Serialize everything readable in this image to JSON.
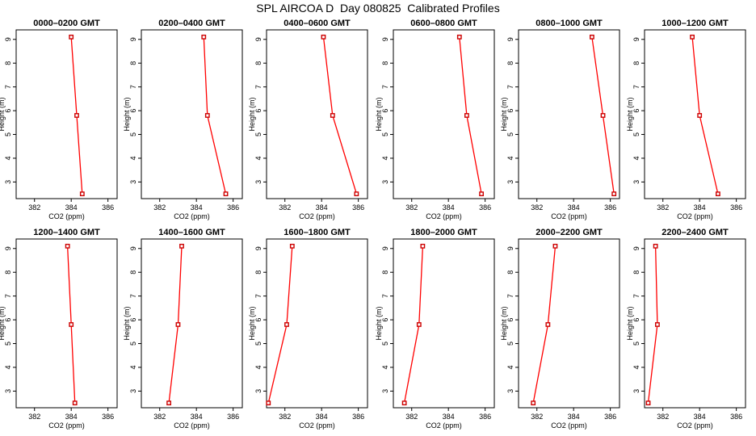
{
  "title": "SPL AIRCOA D  Day 080825  Calibrated Profiles",
  "style": {
    "line_color": "#ff0000",
    "marker_color": "#cc0000",
    "axis_color": "#000000"
  },
  "chart_data": [
    {
      "type": "line",
      "title": "0000–0200 GMT",
      "xlabel": "CO2 (ppm)",
      "ylabel": "Height (m)",
      "xlim": [
        381,
        386.5
      ],
      "ylim": [
        2.3,
        9.4
      ],
      "xticks": [
        382,
        384,
        386
      ],
      "yticks": [
        3,
        4,
        5,
        6,
        7,
        8,
        9
      ],
      "grid": false,
      "series": [
        {
          "x": [
            384.0,
            384.3,
            384.6
          ],
          "y": [
            9.1,
            5.8,
            2.5
          ]
        }
      ]
    },
    {
      "type": "line",
      "title": "0200–0400 GMT",
      "xlabel": "CO2 (ppm)",
      "ylabel": "Height (m)",
      "xlim": [
        381,
        386.5
      ],
      "ylim": [
        2.3,
        9.4
      ],
      "xticks": [
        382,
        384,
        386
      ],
      "yticks": [
        3,
        4,
        5,
        6,
        7,
        8,
        9
      ],
      "grid": false,
      "series": [
        {
          "x": [
            384.4,
            384.6,
            385.6
          ],
          "y": [
            9.1,
            5.8,
            2.5
          ]
        }
      ]
    },
    {
      "type": "line",
      "title": "0400–0600 GMT",
      "xlabel": "CO2 (ppm)",
      "ylabel": "Height (m)",
      "xlim": [
        381,
        386.5
      ],
      "ylim": [
        2.3,
        9.4
      ],
      "xticks": [
        382,
        384,
        386
      ],
      "yticks": [
        3,
        4,
        5,
        6,
        7,
        8,
        9
      ],
      "grid": false,
      "series": [
        {
          "x": [
            384.1,
            384.6,
            385.9
          ],
          "y": [
            9.1,
            5.8,
            2.5
          ]
        }
      ]
    },
    {
      "type": "line",
      "title": "0600–0800 GMT",
      "xlabel": "CO2 (ppm)",
      "ylabel": "Height (m)",
      "xlim": [
        381,
        386.5
      ],
      "ylim": [
        2.3,
        9.4
      ],
      "xticks": [
        382,
        384,
        386
      ],
      "yticks": [
        3,
        4,
        5,
        6,
        7,
        8,
        9
      ],
      "grid": false,
      "series": [
        {
          "x": [
            384.6,
            385.0,
            385.8
          ],
          "y": [
            9.1,
            5.8,
            2.5
          ]
        }
      ]
    },
    {
      "type": "line",
      "title": "0800–1000 GMT",
      "xlabel": "CO2 (ppm)",
      "ylabel": "Height (m)",
      "xlim": [
        381,
        386.5
      ],
      "ylim": [
        2.3,
        9.4
      ],
      "xticks": [
        382,
        384,
        386
      ],
      "yticks": [
        3,
        4,
        5,
        6,
        7,
        8,
        9
      ],
      "grid": false,
      "series": [
        {
          "x": [
            385.0,
            385.6,
            386.2
          ],
          "y": [
            9.1,
            5.8,
            2.5
          ]
        }
      ]
    },
    {
      "type": "line",
      "title": "1000–1200 GMT",
      "xlabel": "CO2 (ppm)",
      "ylabel": "Height (m)",
      "xlim": [
        381,
        386.5
      ],
      "ylim": [
        2.3,
        9.4
      ],
      "xticks": [
        382,
        384,
        386
      ],
      "yticks": [
        3,
        4,
        5,
        6,
        7,
        8,
        9
      ],
      "grid": false,
      "series": [
        {
          "x": [
            383.6,
            384.0,
            385.0
          ],
          "y": [
            9.1,
            5.8,
            2.5
          ]
        }
      ]
    },
    {
      "type": "line",
      "title": "1200–1400 GMT",
      "xlabel": "CO2 (ppm)",
      "ylabel": "Height (m)",
      "xlim": [
        381,
        386.5
      ],
      "ylim": [
        2.3,
        9.4
      ],
      "xticks": [
        382,
        384,
        386
      ],
      "yticks": [
        3,
        4,
        5,
        6,
        7,
        8,
        9
      ],
      "grid": false,
      "series": [
        {
          "x": [
            383.8,
            384.0,
            384.2
          ],
          "y": [
            9.1,
            5.8,
            2.5
          ]
        }
      ]
    },
    {
      "type": "line",
      "title": "1400–1600 GMT",
      "xlabel": "CO2 (ppm)",
      "ylabel": "Height (m)",
      "xlim": [
        381,
        386.5
      ],
      "ylim": [
        2.3,
        9.4
      ],
      "xticks": [
        382,
        384,
        386
      ],
      "yticks": [
        3,
        4,
        5,
        6,
        7,
        8,
        9
      ],
      "grid": false,
      "series": [
        {
          "x": [
            383.2,
            383.0,
            382.5
          ],
          "y": [
            9.1,
            5.8,
            2.5
          ]
        }
      ]
    },
    {
      "type": "line",
      "title": "1600–1800 GMT",
      "xlabel": "CO2 (ppm)",
      "ylabel": "Height (m)",
      "xlim": [
        381,
        386.5
      ],
      "ylim": [
        2.3,
        9.4
      ],
      "xticks": [
        382,
        384,
        386
      ],
      "yticks": [
        3,
        4,
        5,
        6,
        7,
        8,
        9
      ],
      "grid": false,
      "series": [
        {
          "x": [
            382.4,
            382.1,
            381.1
          ],
          "y": [
            9.1,
            5.8,
            2.5
          ]
        }
      ]
    },
    {
      "type": "line",
      "title": "1800–2000 GMT",
      "xlabel": "CO2 (ppm)",
      "ylabel": "Height (m)",
      "xlim": [
        381,
        386.5
      ],
      "ylim": [
        2.3,
        9.4
      ],
      "xticks": [
        382,
        384,
        386
      ],
      "yticks": [
        3,
        4,
        5,
        6,
        7,
        8,
        9
      ],
      "grid": false,
      "series": [
        {
          "x": [
            382.6,
            382.4,
            381.6
          ],
          "y": [
            9.1,
            5.8,
            2.5
          ]
        }
      ]
    },
    {
      "type": "line",
      "title": "2000–2200 GMT",
      "xlabel": "CO2 (ppm)",
      "ylabel": "Height (m)",
      "xlim": [
        381,
        386.5
      ],
      "ylim": [
        2.3,
        9.4
      ],
      "xticks": [
        382,
        384,
        386
      ],
      "yticks": [
        3,
        4,
        5,
        6,
        7,
        8,
        9
      ],
      "grid": false,
      "series": [
        {
          "x": [
            383.0,
            382.6,
            381.8
          ],
          "y": [
            9.1,
            5.8,
            2.5
          ]
        }
      ]
    },
    {
      "type": "line",
      "title": "2200–2400 GMT",
      "xlabel": "CO2 (ppm)",
      "ylabel": "Height (m)",
      "xlim": [
        381,
        386.5
      ],
      "ylim": [
        2.3,
        9.4
      ],
      "xticks": [
        382,
        384,
        386
      ],
      "yticks": [
        3,
        4,
        5,
        6,
        7,
        8,
        9
      ],
      "grid": false,
      "series": [
        {
          "x": [
            381.6,
            381.7,
            381.2
          ],
          "y": [
            9.1,
            5.8,
            2.5
          ]
        }
      ]
    }
  ]
}
